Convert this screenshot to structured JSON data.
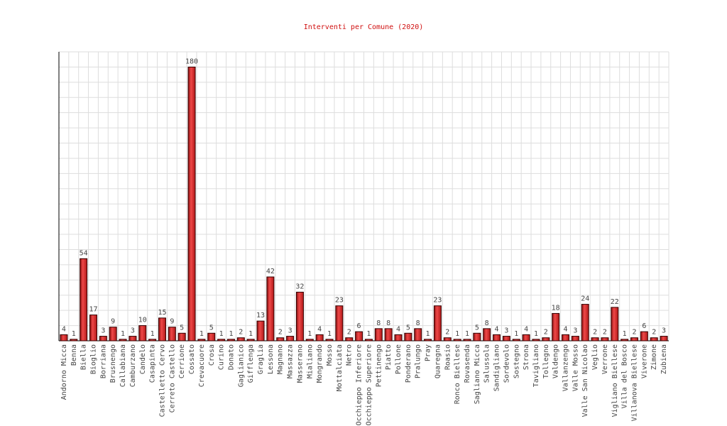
{
  "chart_data": {
    "type": "bar",
    "title": "Interventi per Comune (2020)",
    "categories": [
      "Andorno Micca",
      "Benna",
      "Biella",
      "Bioglio",
      "Borriana",
      "Brusnengo",
      "Callabiana",
      "Camburzano",
      "Candelo",
      "Casapinta",
      "Castelletto Cervo",
      "Cerreto Castello",
      "Cerrione",
      "Cossato",
      "Crevacuore",
      "Crosa",
      "Curino",
      "Donato",
      "Gaglianico",
      "Gifflenga",
      "Graglia",
      "Lessona",
      "Magnano",
      "Massazza",
      "Masserano",
      "Mialiano",
      "Mongrando",
      "Mosso",
      "Mottalciata",
      "Netro",
      "Occhieppo Inferiore",
      "Occhieppo Superiore",
      "Pettinengo",
      "Piatto",
      "Pollone",
      "Ponderano",
      "Pralungo",
      "Pray",
      "Quaregna",
      "Roasio",
      "Ronco Biellese",
      "Rovasenda",
      "Sagliano Micca",
      "Salussola",
      "Sandigliano",
      "Sordevolo",
      "Sostegno",
      "Strona",
      "Tavigliano",
      "Tollegno",
      "Valdengo",
      "Vallanzengo",
      "Valle Mosso",
      "Valle San Nicolao",
      "Veglio",
      "Verrone",
      "Vigliano Biellese",
      "Villa del Bosco",
      "Villanova Biellese",
      "Viverone",
      "Zimone",
      "Zubiena"
    ],
    "values": [
      4,
      1,
      54,
      17,
      3,
      9,
      1,
      3,
      10,
      1,
      15,
      9,
      5,
      180,
      1,
      5,
      1,
      1,
      2,
      1,
      13,
      42,
      2,
      3,
      32,
      1,
      4,
      1,
      23,
      2,
      6,
      1,
      8,
      8,
      4,
      5,
      8,
      1,
      23,
      2,
      1,
      1,
      5,
      8,
      4,
      3,
      1,
      4,
      1,
      2,
      18,
      4,
      3,
      24,
      2,
      2,
      22,
      1,
      2,
      6,
      2,
      3
    ],
    "color": "#e8393c",
    "ylim": [
      0,
      190
    ],
    "yticks": [
      0,
      10,
      20,
      30,
      40,
      50,
      60,
      70,
      80,
      90,
      100,
      110,
      120,
      130,
      140,
      150,
      160,
      170,
      180,
      190
    ],
    "grid": true
  }
}
